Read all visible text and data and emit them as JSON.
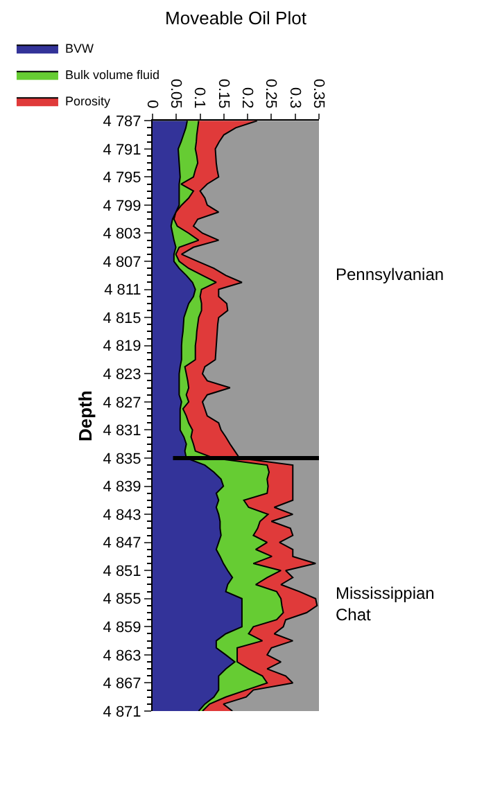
{
  "chart_data": {
    "type": "area",
    "title": "Moveable Oil Plot",
    "ylabel": "Depth",
    "orientation": "horizontal",
    "x": [
      4787,
      4788,
      4789,
      4790,
      4791,
      4792,
      4793,
      4794,
      4795,
      4796,
      4797,
      4798,
      4799,
      4800,
      4801,
      4802,
      4803,
      4804,
      4805,
      4806,
      4807,
      4808,
      4809,
      4810,
      4811,
      4812,
      4813,
      4814,
      4815,
      4816,
      4817,
      4818,
      4819,
      4820,
      4821,
      4822,
      4823,
      4824,
      4825,
      4826,
      4827,
      4828,
      4829,
      4830,
      4831,
      4832,
      4833,
      4834,
      4835,
      4836,
      4837,
      4838,
      4839,
      4840,
      4841,
      4842,
      4843,
      4844,
      4845,
      4846,
      4847,
      4848,
      4849,
      4850,
      4851,
      4852,
      4853,
      4854,
      4855,
      4856,
      4857,
      4858,
      4859,
      4860,
      4861,
      4862,
      4863,
      4864,
      4865,
      4866,
      4867,
      4868,
      4869,
      4870,
      4871
    ],
    "series": [
      {
        "name": "BVW",
        "color": "#333399",
        "values": [
          0.073,
          0.07,
          0.065,
          0.06,
          0.054,
          0.055,
          0.056,
          0.057,
          0.058,
          0.056,
          0.056,
          0.056,
          0.056,
          0.049,
          0.042,
          0.039,
          0.042,
          0.045,
          0.049,
          0.045,
          0.045,
          0.056,
          0.071,
          0.084,
          0.09,
          0.086,
          0.076,
          0.071,
          0.066,
          0.065,
          0.064,
          0.062,
          0.061,
          0.061,
          0.061,
          0.058,
          0.056,
          0.056,
          0.056,
          0.056,
          0.061,
          0.058,
          0.058,
          0.058,
          0.058,
          0.066,
          0.071,
          0.068,
          0.071,
          0.11,
          0.129,
          0.144,
          0.149,
          0.134,
          0.139,
          0.134,
          0.139,
          0.142,
          0.142,
          0.144,
          0.139,
          0.134,
          0.142,
          0.149,
          0.158,
          0.168,
          0.158,
          0.154,
          0.188,
          0.188,
          0.188,
          0.188,
          0.188,
          0.154,
          0.134,
          0.134,
          0.154,
          0.173,
          0.154,
          0.139,
          0.139,
          0.139,
          0.129,
          0.11,
          0.097
        ]
      },
      {
        "name": "Bulk volume fluid",
        "color": "#66cc33",
        "values": [
          0.097,
          0.095,
          0.093,
          0.092,
          0.09,
          0.093,
          0.095,
          0.09,
          0.086,
          0.06,
          0.086,
          0.076,
          0.061,
          0.049,
          0.045,
          0.052,
          0.076,
          0.097,
          0.056,
          0.049,
          0.056,
          0.076,
          0.105,
          0.134,
          0.103,
          0.1,
          0.103,
          0.103,
          0.097,
          0.095,
          0.093,
          0.092,
          0.09,
          0.09,
          0.09,
          0.068,
          0.071,
          0.074,
          0.076,
          0.071,
          0.076,
          0.064,
          0.071,
          0.076,
          0.084,
          0.081,
          0.086,
          0.09,
          0.129,
          0.241,
          0.245,
          0.241,
          0.243,
          0.241,
          0.192,
          0.202,
          0.243,
          0.226,
          0.221,
          0.212,
          0.241,
          0.217,
          0.251,
          0.212,
          0.27,
          0.241,
          0.217,
          0.261,
          0.27,
          0.272,
          0.275,
          0.261,
          0.212,
          0.202,
          0.231,
          0.178,
          0.178,
          0.178,
          0.202,
          0.231,
          0.241,
          0.197,
          0.154,
          0.12,
          0.105
        ]
      },
      {
        "name": "Porosity",
        "color": "#e03a3a",
        "values": [
          0.22,
          0.175,
          0.15,
          0.14,
          0.132,
          0.133,
          0.134,
          0.136,
          0.139,
          0.115,
          0.1,
          0.11,
          0.115,
          0.139,
          0.095,
          0.086,
          0.105,
          0.139,
          0.086,
          0.061,
          0.095,
          0.129,
          0.154,
          0.188,
          0.139,
          0.139,
          0.156,
          0.158,
          0.139,
          0.137,
          0.136,
          0.135,
          0.134,
          0.133,
          0.132,
          0.11,
          0.105,
          0.115,
          0.163,
          0.115,
          0.105,
          0.11,
          0.115,
          0.139,
          0.144,
          0.154,
          0.163,
          0.173,
          0.183,
          0.295,
          0.295,
          0.295,
          0.295,
          0.295,
          0.295,
          0.256,
          0.295,
          0.25,
          0.29,
          0.295,
          0.267,
          0.295,
          0.295,
          0.343,
          0.28,
          0.295,
          0.27,
          0.309,
          0.343,
          0.346,
          0.324,
          0.28,
          0.275,
          0.256,
          0.295,
          0.25,
          0.241,
          0.27,
          0.241,
          0.28,
          0.295,
          0.212,
          0.197,
          0.149,
          0.168
        ]
      }
    ],
    "xlim": [
      0,
      0.35
    ],
    "xticks": [
      0,
      0.05,
      0.1,
      0.15,
      0.2,
      0.25,
      0.3,
      0.35
    ],
    "ylim": [
      4871,
      4787
    ],
    "yticks": [
      {
        "value": 4787,
        "label": "4 787"
      },
      {
        "value": 4791,
        "label": "4 791"
      },
      {
        "value": 4795,
        "label": "4 795"
      },
      {
        "value": 4799,
        "label": "4 799"
      },
      {
        "value": 4803,
        "label": "4 803"
      },
      {
        "value": 4807,
        "label": "4 807"
      },
      {
        "value": 4811,
        "label": "4 811"
      },
      {
        "value": 4815,
        "label": "4 815"
      },
      {
        "value": 4819,
        "label": "4 819"
      },
      {
        "value": 4823,
        "label": "4 823"
      },
      {
        "value": 4827,
        "label": "4 827"
      },
      {
        "value": 4831,
        "label": "4 831"
      },
      {
        "value": 4835,
        "label": "4 835"
      },
      {
        "value": 4839,
        "label": "4 839"
      },
      {
        "value": 4843,
        "label": "4 843"
      },
      {
        "value": 4847,
        "label": "4 847"
      },
      {
        "value": 4851,
        "label": "4 851"
      },
      {
        "value": 4855,
        "label": "4 855"
      },
      {
        "value": 4859,
        "label": "4 859"
      },
      {
        "value": 4863,
        "label": "4 863"
      },
      {
        "value": 4867,
        "label": "4 867"
      },
      {
        "value": 4871,
        "label": "4 871"
      }
    ],
    "ref_lines": [
      {
        "axis": "y",
        "value": 4835,
        "color": "#000000"
      }
    ],
    "annotations": [
      "Pennsylvanian",
      "Mississippian\nChat"
    ],
    "grid": false,
    "legend": "top",
    "marker": "none"
  }
}
